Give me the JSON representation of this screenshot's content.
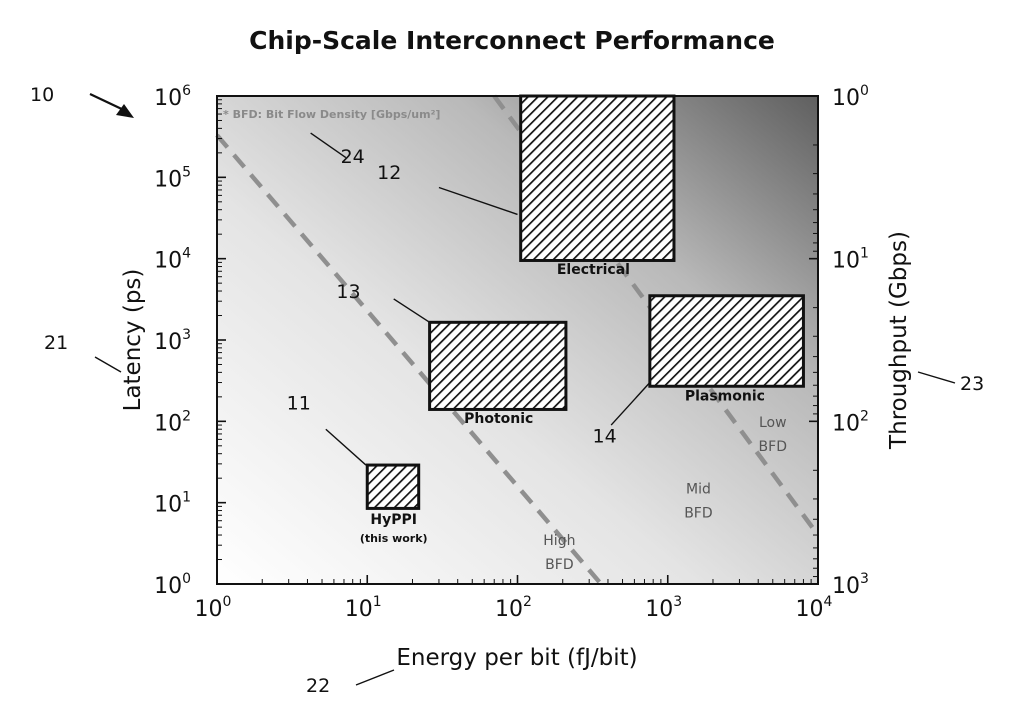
{
  "figure_number": "10",
  "chart_data": {
    "type": "scatter",
    "title": "Chip-Scale Interconnect Performance",
    "xlabel": "Energy per bit (fJ/bit)",
    "ylabel": "Latency (ps)",
    "y2label": "Throughput (Gbps)",
    "xscale": "log",
    "yscale": "log",
    "y2scale": "log",
    "xlim": [
      1,
      10000
    ],
    "ylim": [
      1,
      1000000
    ],
    "y2lim": [
      1000,
      1
    ],
    "x_ticks": [
      {
        "value": 1,
        "base": "10",
        "exp": "0"
      },
      {
        "value": 10,
        "base": "10",
        "exp": "1"
      },
      {
        "value": 100,
        "base": "10",
        "exp": "2"
      },
      {
        "value": 1000,
        "base": "10",
        "exp": "3"
      },
      {
        "value": 10000,
        "base": "10",
        "exp": "4"
      }
    ],
    "y_ticks": [
      {
        "value": 1,
        "base": "10",
        "exp": "0"
      },
      {
        "value": 10,
        "base": "10",
        "exp": "1"
      },
      {
        "value": 100,
        "base": "10",
        "exp": "2"
      },
      {
        "value": 1000,
        "base": "10",
        "exp": "3"
      },
      {
        "value": 10000,
        "base": "10",
        "exp": "4"
      },
      {
        "value": 100000,
        "base": "10",
        "exp": "5"
      },
      {
        "value": 1000000,
        "base": "10",
        "exp": "6"
      }
    ],
    "y2_ticks": [
      {
        "value": 1,
        "base": "10",
        "exp": "0"
      },
      {
        "value": 10,
        "base": "10",
        "exp": "1"
      },
      {
        "value": 100,
        "base": "10",
        "exp": "2"
      },
      {
        "value": 1000,
        "base": "10",
        "exp": "3"
      }
    ],
    "regions": [
      {
        "name": "Electrical",
        "ref": "12",
        "x": [
          105,
          1100
        ],
        "y": [
          9500,
          1000000
        ],
        "label_at": [
          320,
          6500
        ]
      },
      {
        "name": "Photonic",
        "ref": "13",
        "x": [
          26,
          210
        ],
        "y": [
          140,
          1650
        ],
        "label_at": [
          75,
          95
        ]
      },
      {
        "name": "Plasmonic",
        "ref": "14",
        "x": [
          760,
          8000
        ],
        "y": [
          270,
          3500
        ],
        "label_at": [
          2400,
          180
        ]
      },
      {
        "name": "HyPPI",
        "sublabel": "(this work)",
        "ref": "11",
        "x": [
          10,
          22
        ],
        "y": [
          8.5,
          29
        ],
        "label_at": [
          15,
          5.5
        ]
      }
    ],
    "bfd_lines": [
      {
        "x": [
          1,
          360
        ],
        "y": [
          330000,
          1
        ]
      },
      {
        "x": [
          70,
          10000
        ],
        "y": [
          1000000,
          4
        ]
      }
    ],
    "bfd_labels": [
      {
        "lines": [
          "High",
          "BFD"
        ],
        "at": [
          190,
          3.0
        ]
      },
      {
        "lines": [
          "Mid",
          "BFD"
        ],
        "at": [
          1600,
          13
        ]
      },
      {
        "lines": [
          "Low",
          "BFD"
        ],
        "at": [
          5000,
          85
        ]
      }
    ],
    "note": "* BFD: Bit Flow Density [Gbps/um²]",
    "callouts": [
      {
        "ref": "24",
        "label_at": [
          8,
          150000
        ],
        "line_from": [
          4.2,
          350000
        ],
        "line_to": [
          7.2,
          175000
        ]
      },
      {
        "ref": "12",
        "label_at": [
          14,
          95000
        ],
        "line_from": [
          30,
          75000
        ],
        "line_to": [
          100,
          35000
        ]
      },
      {
        "ref": "13",
        "label_at": [
          7.5,
          3300
        ],
        "line_from": [
          15,
          3200
        ],
        "line_to": [
          26,
          1650
        ]
      },
      {
        "ref": "11",
        "label_at": [
          3.5,
          140
        ],
        "line_from": [
          5.3,
          80
        ],
        "line_to": [
          9.8,
          29
        ]
      },
      {
        "ref": "14",
        "label_at": [
          380,
          55
        ],
        "line_from": [
          420,
          90
        ],
        "line_to": [
          760,
          300
        ]
      }
    ]
  },
  "outer_callouts": {
    "ylabel_ref": "21",
    "xlabel_ref": "22",
    "y2label_ref": "23"
  }
}
